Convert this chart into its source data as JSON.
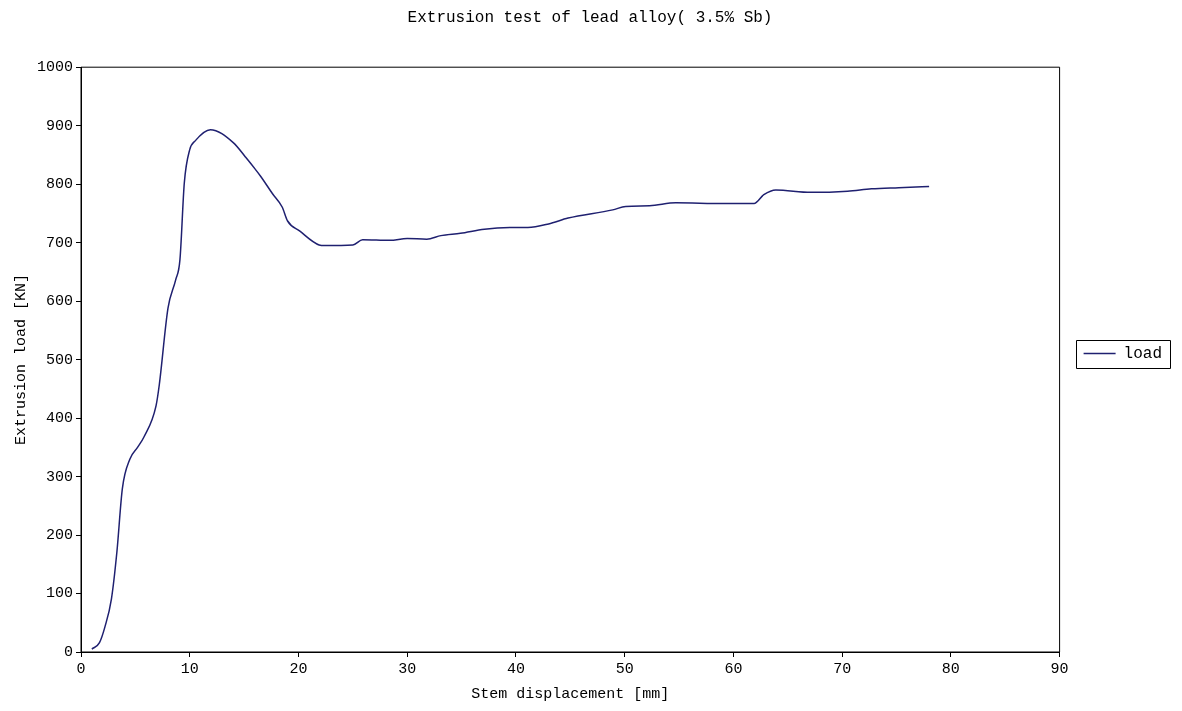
{
  "chart_data": {
    "type": "line",
    "title": "Extrusion test of lead alloy( 3.5% Sb)",
    "xlabel": "Stem displacement [mm]",
    "ylabel": "Extrusion load [KN]",
    "xlim": [
      0,
      90
    ],
    "xticks": [
      0,
      10,
      20,
      30,
      40,
      50,
      60,
      70,
      80,
      90
    ],
    "ylim": [
      0,
      1000
    ],
    "yticks": [
      0,
      100,
      200,
      300,
      400,
      500,
      600,
      700,
      800,
      900,
      1000
    ],
    "grid": false,
    "legend": "right",
    "marker": "none",
    "line_style": "solid",
    "series": [
      {
        "name": "load",
        "color": "#1f2070",
        "x": [
          1.0,
          1.7,
          2.2,
          2.8,
          3.3,
          3.8,
          4.5,
          5.2,
          5.8,
          6.9,
          7.2,
          8.0,
          8.7,
          9.1,
          9.5,
          10.0,
          10.5,
          11.9,
          14.0,
          15.1,
          16.5,
          17.6,
          18.5,
          19.0,
          20.1,
          21.9,
          22.4,
          25.0,
          25.9,
          28.4,
          30.0,
          31.8,
          33.1,
          34.9,
          37.1,
          39.9,
          41.1,
          43.0,
          44.8,
          48.9,
          50.1,
          52.3,
          54.7,
          59.1,
          61.9,
          62.8,
          63.9,
          67.1,
          70.5,
          72.7,
          75.2,
          78.0
        ],
        "values": [
          5,
          16,
          43,
          91,
          171,
          279,
          330,
          350,
          368,
          421,
          457,
          588,
          636,
          671,
          802,
          859,
          874,
          893,
          871,
          847,
          814,
          784,
          761,
          737,
          720,
          696,
          695,
          696,
          705,
          704,
          707,
          706,
          712,
          716,
          723,
          726,
          726,
          732,
          742,
          756,
          762,
          763,
          768,
          767,
          767,
          782,
          790,
          786,
          788,
          792,
          794,
          796
        ]
      }
    ]
  }
}
